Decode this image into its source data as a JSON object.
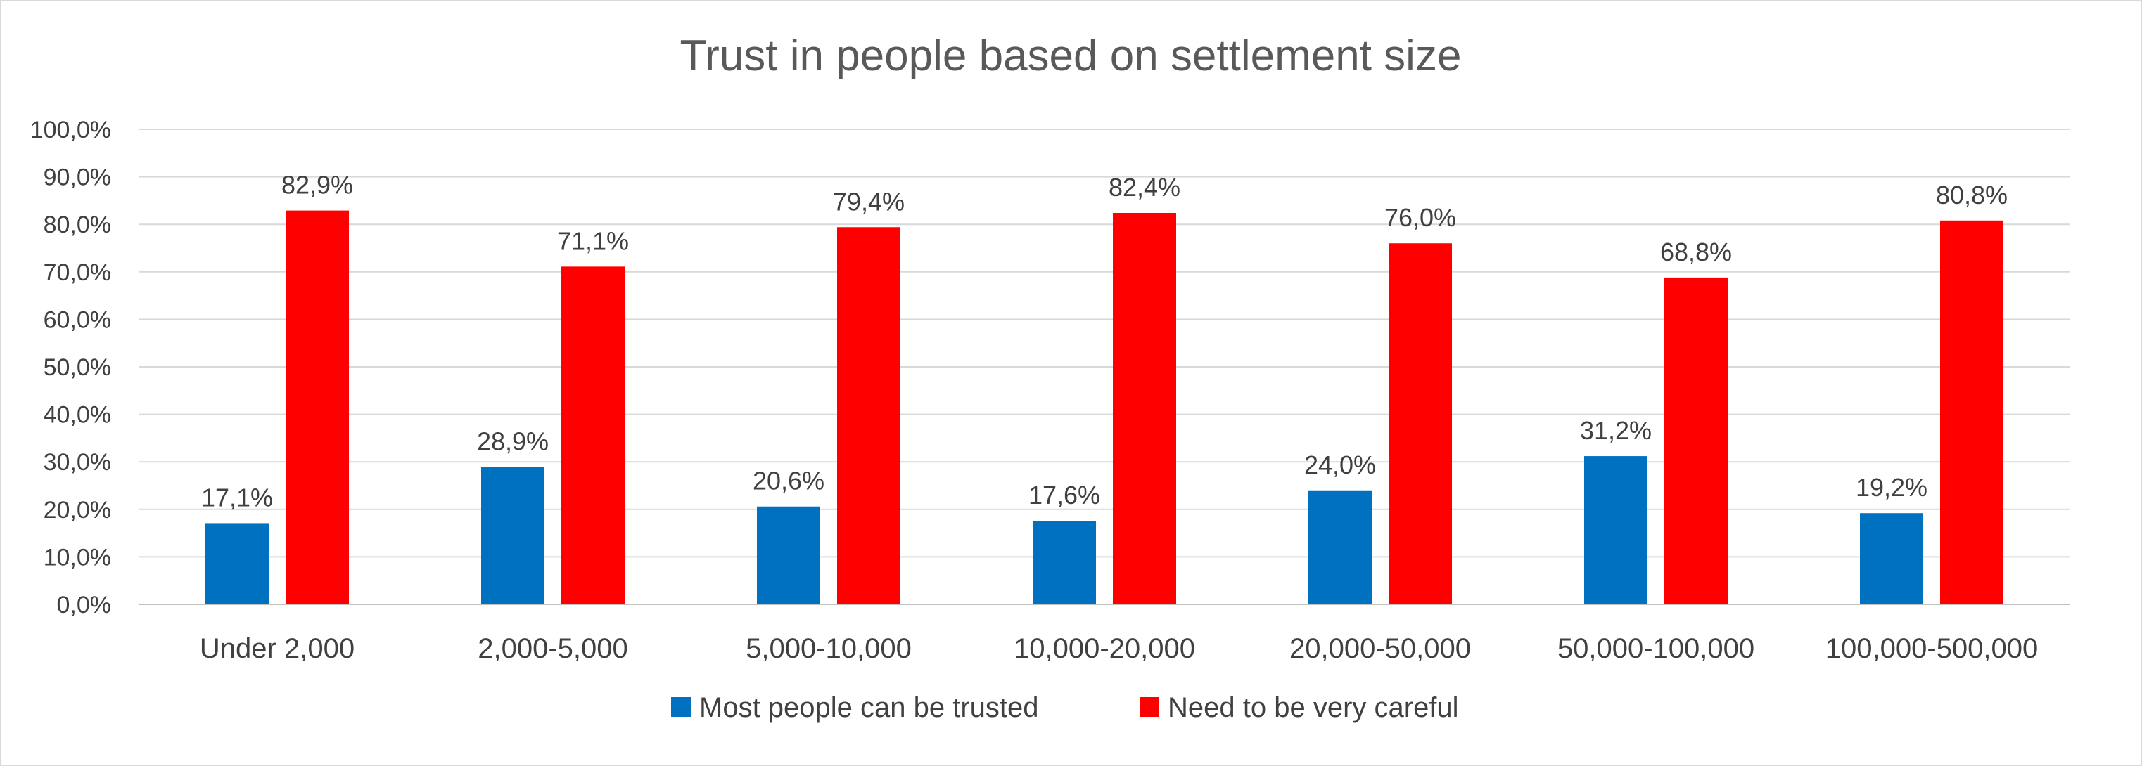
{
  "chart_data": {
    "type": "bar",
    "title": "Trust in people based on settlement size",
    "xlabel": "",
    "ylabel": "",
    "ylim": [
      0,
      100
    ],
    "y_ticks": [
      "0,0%",
      "10,0%",
      "20,0%",
      "30,0%",
      "40,0%",
      "50,0%",
      "60,0%",
      "70,0%",
      "80,0%",
      "90,0%",
      "100,0%"
    ],
    "categories": [
      "Under 2,000",
      "2,000-5,000",
      "5,000-10,000",
      "10,000-20,000",
      "20,000-50,000",
      "50,000-100,000",
      "100,000-500,000"
    ],
    "series": [
      {
        "name": "Most people can be trusted",
        "color": "#0070C0",
        "values": [
          17.1,
          28.9,
          20.6,
          17.6,
          24.0,
          31.2,
          19.2
        ],
        "labels": [
          "17,1%",
          "28,9%",
          "20,6%",
          "17,6%",
          "24,0%",
          "31,2%",
          "19,2%"
        ]
      },
      {
        "name": "Need to be very careful",
        "color": "#FF0000",
        "values": [
          82.9,
          71.1,
          79.4,
          82.4,
          76.0,
          68.8,
          80.8
        ],
        "labels": [
          "82,9%",
          "71,1%",
          "79,4%",
          "82,4%",
          "76,0%",
          "68,8%",
          "80,8%"
        ]
      }
    ],
    "grid": true,
    "legend": "bottom"
  }
}
